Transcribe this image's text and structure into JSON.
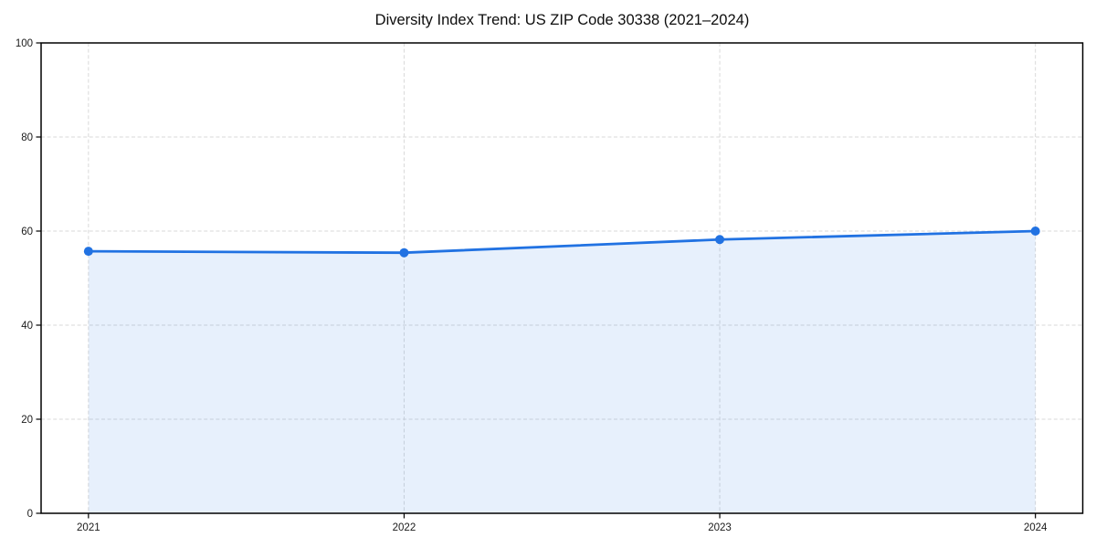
{
  "page": {
    "background_color": "#ffffff"
  },
  "chart_data": {
    "type": "area",
    "title": "Diversity Index Trend: US ZIP Code 30338 (2021–2024)",
    "categories": [
      "2021",
      "2022",
      "2023",
      "2024"
    ],
    "series": [
      {
        "name": "Diversity Index",
        "values": [
          55.7,
          55.4,
          58.2,
          60.0
        ]
      }
    ],
    "xlabel": "",
    "ylabel": "",
    "ylim": [
      0,
      100
    ],
    "yticks": [
      0,
      20,
      40,
      60,
      80,
      100
    ],
    "grid": true,
    "grid_style": "dashed",
    "legend": "none",
    "marker": "circle",
    "marker_size": 5,
    "line_width": 2.8,
    "line_color": "#2172e2",
    "fill_opacity": 0.11,
    "grid_color": "#d9d9d9",
    "axis_color": "#000000",
    "tick_label_color": "#1a1a1a"
  }
}
